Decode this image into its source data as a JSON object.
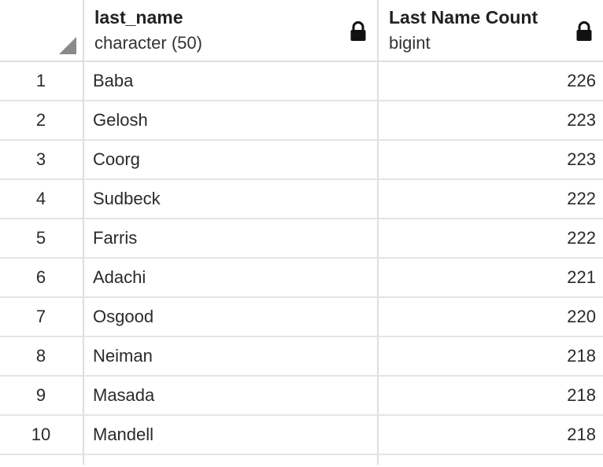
{
  "columns": [
    {
      "name": "last_name",
      "type": "character (50)"
    },
    {
      "name": "Last Name Count",
      "type": "bigint"
    }
  ],
  "rows": [
    {
      "index": "1",
      "last_name": "Baba",
      "count": "226"
    },
    {
      "index": "2",
      "last_name": "Gelosh",
      "count": "223"
    },
    {
      "index": "3",
      "last_name": "Coorg",
      "count": "223"
    },
    {
      "index": "4",
      "last_name": "Sudbeck",
      "count": "222"
    },
    {
      "index": "5",
      "last_name": "Farris",
      "count": "222"
    },
    {
      "index": "6",
      "last_name": "Adachi",
      "count": "221"
    },
    {
      "index": "7",
      "last_name": "Osgood",
      "count": "220"
    },
    {
      "index": "8",
      "last_name": "Neiman",
      "count": "218"
    },
    {
      "index": "9",
      "last_name": "Masada",
      "count": "218"
    },
    {
      "index": "10",
      "last_name": "Mandell",
      "count": "218"
    }
  ],
  "icons": {
    "corner": "select-all-corner-icon",
    "lock": "lock-icon"
  },
  "colors": {
    "grid_line": "#dedede",
    "corner": "#8a8a8a",
    "text": "#222222"
  }
}
